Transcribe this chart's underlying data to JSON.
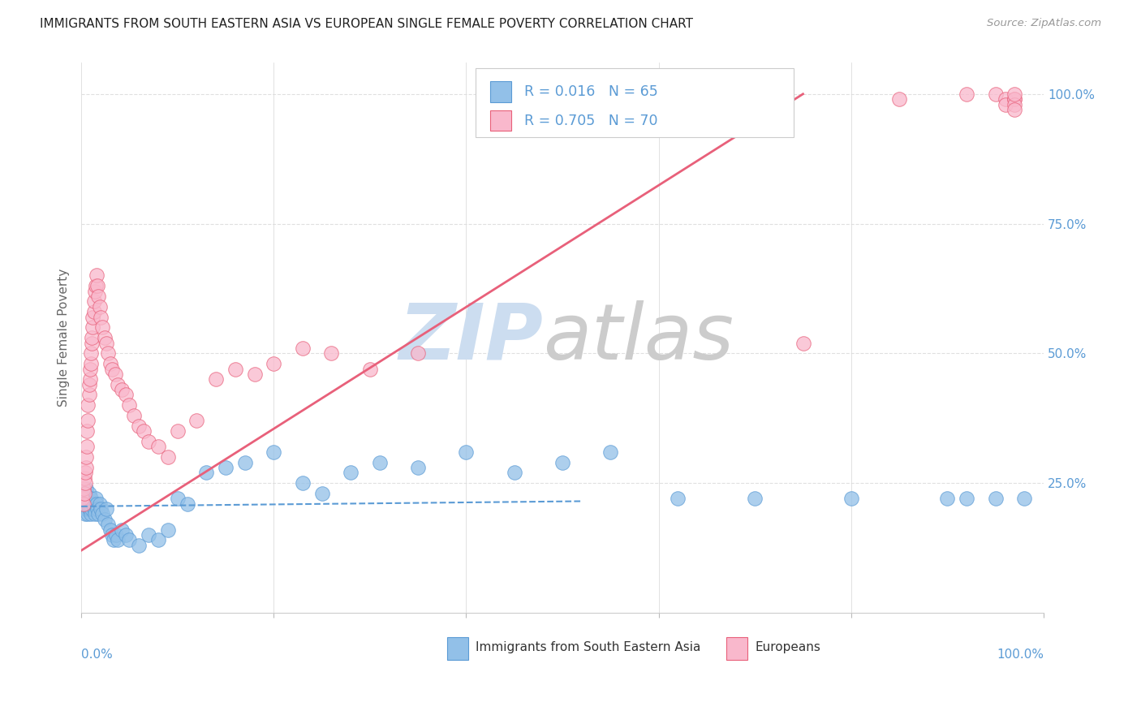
{
  "title": "IMMIGRANTS FROM SOUTH EASTERN ASIA VS EUROPEAN SINGLE FEMALE POVERTY CORRELATION CHART",
  "source": "Source: ZipAtlas.com",
  "ylabel": "Single Female Poverty",
  "legend_label1": "Immigrants from South Eastern Asia",
  "legend_label2": "Europeans",
  "blue_color": "#92c0e8",
  "pink_color": "#f9b8cc",
  "blue_line_color": "#5b9bd5",
  "pink_line_color": "#e8607a",
  "watermark_zip_color": "#ccddf0",
  "watermark_atlas_color": "#cccccc",
  "grid_color": "#e0e0e0",
  "tick_color": "#5b9bd5",
  "blue_scatter_x": [
    0.002,
    0.003,
    0.003,
    0.004,
    0.004,
    0.005,
    0.005,
    0.006,
    0.006,
    0.007,
    0.007,
    0.008,
    0.008,
    0.009,
    0.009,
    0.01,
    0.01,
    0.011,
    0.012,
    0.013,
    0.014,
    0.015,
    0.016,
    0.017,
    0.018,
    0.019,
    0.02,
    0.022,
    0.024,
    0.026,
    0.028,
    0.03,
    0.032,
    0.034,
    0.036,
    0.038,
    0.042,
    0.046,
    0.05,
    0.06,
    0.07,
    0.08,
    0.09,
    0.1,
    0.11,
    0.13,
    0.15,
    0.17,
    0.2,
    0.23,
    0.25,
    0.28,
    0.31,
    0.35,
    0.4,
    0.45,
    0.5,
    0.55,
    0.62,
    0.7,
    0.8,
    0.9,
    0.92,
    0.95,
    0.98
  ],
  "blue_scatter_y": [
    0.21,
    0.2,
    0.23,
    0.22,
    0.19,
    0.21,
    0.24,
    0.2,
    0.22,
    0.19,
    0.21,
    0.2,
    0.23,
    0.21,
    0.2,
    0.22,
    0.19,
    0.2,
    0.21,
    0.2,
    0.19,
    0.22,
    0.21,
    0.2,
    0.19,
    0.21,
    0.2,
    0.19,
    0.18,
    0.2,
    0.17,
    0.16,
    0.15,
    0.14,
    0.15,
    0.14,
    0.16,
    0.15,
    0.14,
    0.13,
    0.15,
    0.14,
    0.16,
    0.22,
    0.21,
    0.27,
    0.28,
    0.29,
    0.31,
    0.25,
    0.23,
    0.27,
    0.29,
    0.28,
    0.31,
    0.27,
    0.29,
    0.31,
    0.22,
    0.22,
    0.22,
    0.22,
    0.22,
    0.22,
    0.22
  ],
  "pink_scatter_x": [
    0.001,
    0.002,
    0.002,
    0.003,
    0.003,
    0.004,
    0.004,
    0.005,
    0.005,
    0.006,
    0.006,
    0.007,
    0.007,
    0.008,
    0.008,
    0.009,
    0.009,
    0.01,
    0.01,
    0.011,
    0.011,
    0.012,
    0.012,
    0.013,
    0.013,
    0.014,
    0.015,
    0.016,
    0.017,
    0.018,
    0.019,
    0.02,
    0.022,
    0.024,
    0.026,
    0.028,
    0.03,
    0.032,
    0.035,
    0.038,
    0.042,
    0.046,
    0.05,
    0.055,
    0.06,
    0.065,
    0.07,
    0.08,
    0.09,
    0.1,
    0.12,
    0.14,
    0.16,
    0.18,
    0.2,
    0.23,
    0.26,
    0.3,
    0.35,
    0.75,
    0.85,
    0.92,
    0.95,
    0.96,
    0.96,
    0.97,
    0.97,
    0.97,
    0.97,
    0.97
  ],
  "pink_scatter_y": [
    0.22,
    0.21,
    0.24,
    0.23,
    0.26,
    0.25,
    0.27,
    0.28,
    0.3,
    0.32,
    0.35,
    0.37,
    0.4,
    0.42,
    0.44,
    0.45,
    0.47,
    0.48,
    0.5,
    0.52,
    0.53,
    0.55,
    0.57,
    0.58,
    0.6,
    0.62,
    0.63,
    0.65,
    0.63,
    0.61,
    0.59,
    0.57,
    0.55,
    0.53,
    0.52,
    0.5,
    0.48,
    0.47,
    0.46,
    0.44,
    0.43,
    0.42,
    0.4,
    0.38,
    0.36,
    0.35,
    0.33,
    0.32,
    0.3,
    0.35,
    0.37,
    0.45,
    0.47,
    0.46,
    0.48,
    0.51,
    0.5,
    0.47,
    0.5,
    0.52,
    0.99,
    1.0,
    1.0,
    0.99,
    0.98,
    0.99,
    0.99,
    0.98,
    0.97,
    1.0
  ],
  "blue_trendline_x": [
    0.0,
    0.52
  ],
  "blue_trendline_y": [
    0.205,
    0.215
  ],
  "pink_trendline_x": [
    0.0,
    0.75
  ],
  "pink_trendline_y": [
    0.12,
    1.0
  ],
  "xlim": [
    0.0,
    1.0
  ],
  "ylim": [
    0.0,
    1.06
  ],
  "yticks": [
    0.25,
    0.5,
    0.75,
    1.0
  ],
  "ytick_labels": [
    "25.0%",
    "50.0%",
    "75.0%",
    "100.0%"
  ],
  "xtick_positions": [
    0.0,
    0.2,
    0.4,
    0.6,
    0.8,
    1.0
  ]
}
